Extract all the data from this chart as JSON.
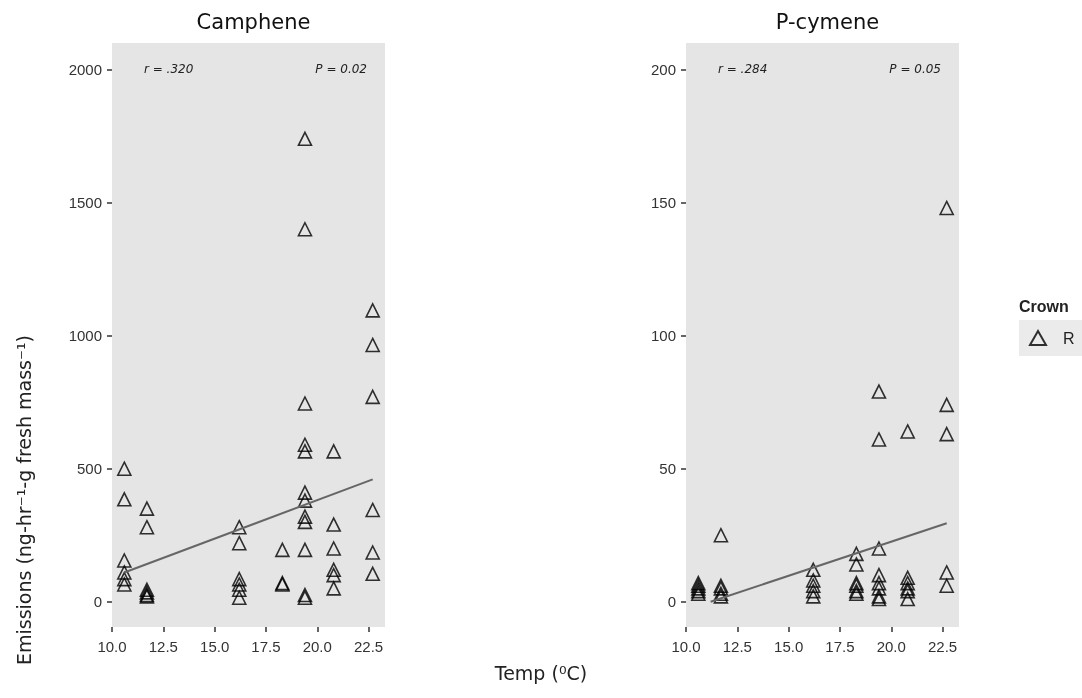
{
  "chart_data": [
    {
      "type": "scatter",
      "title": "Camphene",
      "xlabel": "Temp (⁰C)",
      "ylabel": "Emissions (ng-hr⁻¹-g fresh mass⁻¹)",
      "annotations": [
        "r = .320",
        "P = 0.02"
      ],
      "marker": "triangle",
      "grid": false,
      "legend": false,
      "xlim": [
        10,
        23.3
      ],
      "xticks": [
        {
          "value": 10,
          "label": "10.0"
        },
        {
          "value": 12.5,
          "label": "12.5"
        },
        {
          "value": 15,
          "label": "15.0"
        },
        {
          "value": 17.5,
          "label": "17.5"
        },
        {
          "value": 20,
          "label": "20.0"
        },
        {
          "value": 22.5,
          "label": "22.5"
        }
      ],
      "ylim": [
        -95,
        2100
      ],
      "yticks": [
        0,
        500,
        1000,
        1500,
        2000
      ],
      "series": [
        {
          "color": "#000000",
          "x": [
            10.6,
            10.6,
            10.6,
            10.6,
            10.6,
            10.6,
            11.7,
            11.7,
            11.7,
            11.7,
            11.7,
            11.7,
            16.2,
            16.2,
            16.2,
            16.2,
            16.2,
            16.2,
            18.3,
            18.3,
            18.3,
            19.4,
            19.4,
            19.4,
            19.4,
            19.4,
            19.4,
            19.4,
            19.4,
            19.4,
            19.4,
            19.4,
            19.4,
            20.8,
            20.8,
            20.8,
            20.8,
            20.8,
            20.8,
            22.7,
            22.7,
            22.7,
            22.7,
            22.7,
            22.7
          ],
          "values": [
            500,
            385,
            155,
            110,
            85,
            65,
            350,
            280,
            45,
            35,
            25,
            20,
            280,
            220,
            85,
            65,
            45,
            15,
            195,
            70,
            65,
            1740,
            1400,
            745,
            590,
            565,
            410,
            380,
            320,
            300,
            195,
            25,
            15,
            565,
            290,
            200,
            120,
            100,
            50,
            1095,
            965,
            770,
            345,
            185,
            105
          ]
        },
        {
          "type": "line",
          "color": "#666666",
          "marker": "none",
          "x": [
            10.6,
            22.7
          ],
          "values": [
            110,
            460
          ]
        }
      ]
    },
    {
      "type": "scatter",
      "title": "P-cymene",
      "annotations": [
        "r = .284",
        "P = 0.05"
      ],
      "marker": "triangle",
      "grid": false,
      "legend": "right",
      "legend_title": "Crown",
      "xlim": [
        10,
        23.3
      ],
      "xticks": [
        {
          "value": 10,
          "label": "10.0"
        },
        {
          "value": 12.5,
          "label": "12.5"
        },
        {
          "value": 15,
          "label": "15.0"
        },
        {
          "value": 17.5,
          "label": "17.5"
        },
        {
          "value": 20,
          "label": "20.0"
        },
        {
          "value": 22.5,
          "label": "22.5"
        }
      ],
      "ylim": [
        -9.5,
        210
      ],
      "yticks": [
        0,
        50,
        100,
        150,
        200
      ],
      "series": [
        {
          "name": "R",
          "color": "#000000",
          "x": [
            10.6,
            10.6,
            10.6,
            10.6,
            10.6,
            11.7,
            11.7,
            11.7,
            11.7,
            11.7,
            16.2,
            16.2,
            16.2,
            16.2,
            16.2,
            18.3,
            18.3,
            18.3,
            18.3,
            18.3,
            18.3,
            19.4,
            19.4,
            19.4,
            19.4,
            19.4,
            19.4,
            19.4,
            19.4,
            20.8,
            20.8,
            20.8,
            20.8,
            20.8,
            20.8,
            22.7,
            22.7,
            22.7,
            22.7,
            22.7
          ],
          "values": [
            7,
            6,
            5,
            4,
            3,
            25,
            6,
            5,
            3,
            2,
            12,
            8,
            6,
            4,
            2,
            18,
            14,
            7,
            6,
            4,
            3,
            79,
            61,
            20,
            10,
            7,
            5,
            2,
            1,
            64,
            9,
            7,
            5,
            4,
            1,
            148,
            74,
            63,
            11,
            6
          ]
        },
        {
          "type": "line",
          "color": "#666666",
          "marker": "none",
          "x": [
            11.2,
            22.7
          ],
          "values": [
            0,
            29.5
          ]
        }
      ]
    }
  ]
}
